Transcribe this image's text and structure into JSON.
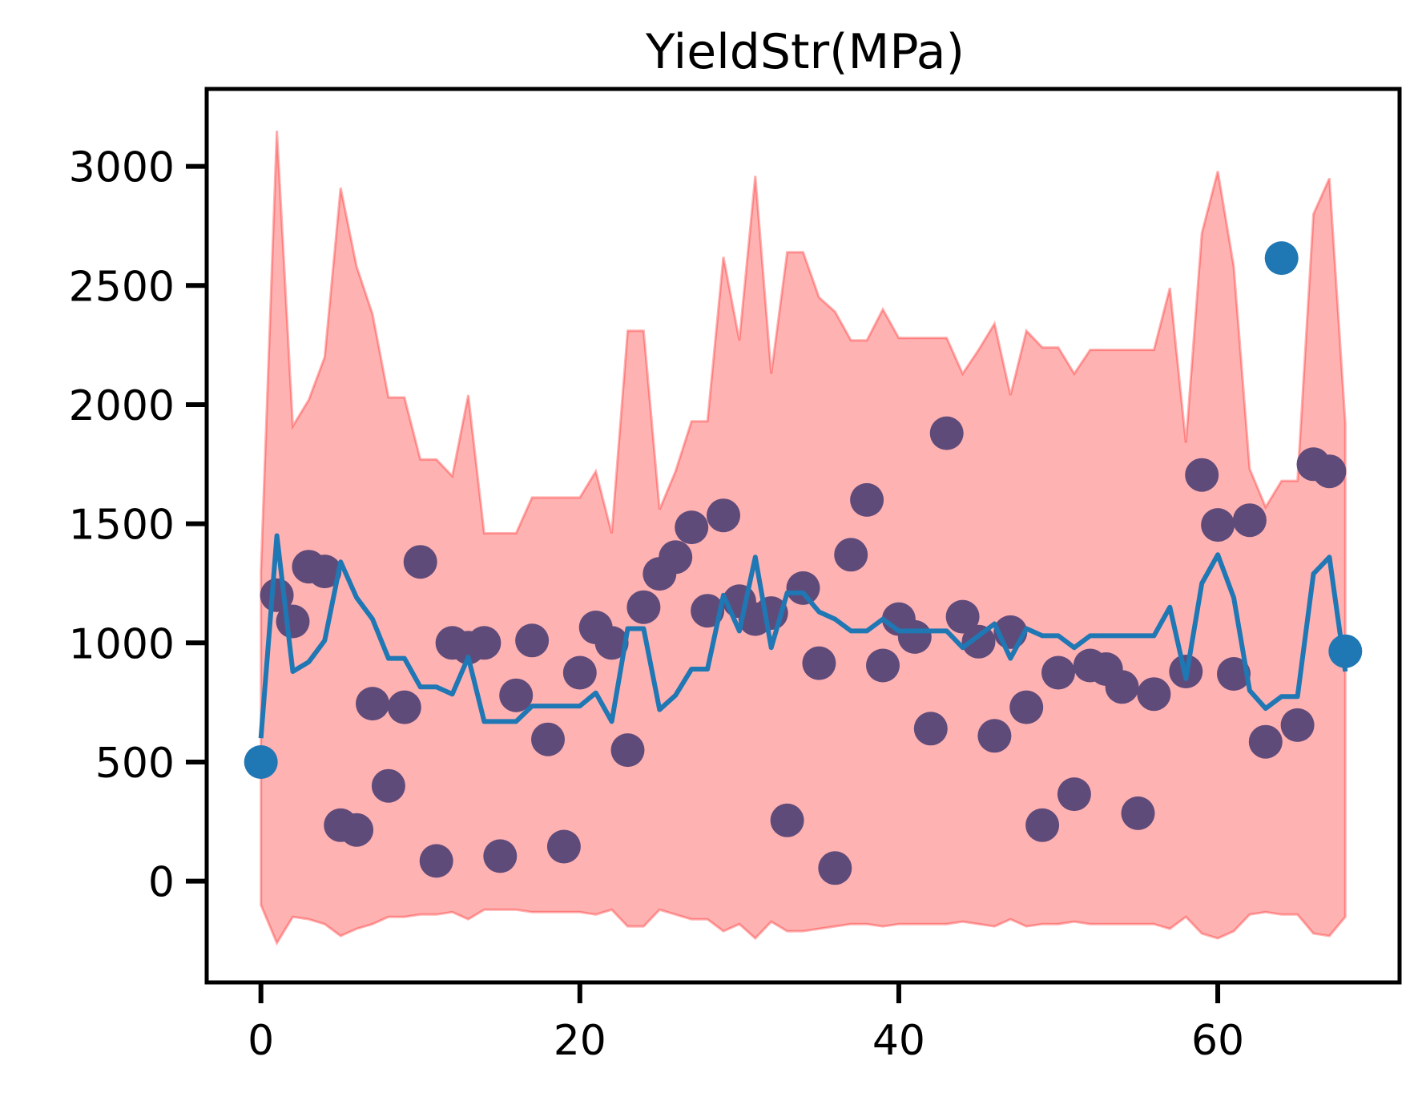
{
  "chart_data": {
    "type": "line",
    "title": "YieldStr(MPa)",
    "xlabel": "",
    "ylabel": "",
    "xlim": [
      -3.4,
      71.4
    ],
    "ylim": [
      -425,
      3325
    ],
    "xticks": [
      0,
      20,
      40,
      60
    ],
    "yticks": [
      0,
      500,
      1000,
      1500,
      2000,
      2500,
      3000
    ],
    "grid": false,
    "legend": "none",
    "colors": {
      "band": "#ff0000",
      "band_opacity": 0.3,
      "line": "#1f77b4",
      "points_inside": "#5f4b7a",
      "points_outside": "#1f77b4"
    },
    "band": {
      "x": [
        0,
        1,
        2,
        3,
        4,
        5,
        6,
        7,
        8,
        9,
        10,
        11,
        12,
        13,
        14,
        15,
        16,
        17,
        18,
        19,
        20,
        21,
        22,
        23,
        24,
        25,
        26,
        27,
        28,
        29,
        30,
        31,
        32,
        33,
        34,
        35,
        36,
        37,
        38,
        39,
        40,
        41,
        42,
        43,
        44,
        45,
        46,
        47,
        48,
        49,
        50,
        51,
        52,
        53,
        54,
        55,
        56,
        57,
        58,
        59,
        60,
        61,
        62,
        63,
        64,
        65,
        66,
        67,
        68
      ],
      "upper": [
        1300,
        3150,
        1910,
        2020,
        2200,
        2910,
        2580,
        2380,
        2030,
        2030,
        1770,
        1770,
        1700,
        2040,
        1460,
        1460,
        1460,
        1610,
        1610,
        1610,
        1610,
        1720,
        1460,
        2310,
        2310,
        1560,
        1720,
        1930,
        1930,
        2620,
        2270,
        2960,
        2130,
        2640,
        2640,
        2450,
        2390,
        2270,
        2270,
        2400,
        2280,
        2280,
        2280,
        2280,
        2130,
        2230,
        2340,
        2040,
        2310,
        2240,
        2240,
        2130,
        2230,
        2230,
        2230,
        2230,
        2230,
        2490,
        1840,
        2720,
        2980,
        2580,
        1730,
        1570,
        1680,
        1680,
        2800,
        2950,
        1920
      ],
      "lower": [
        -100,
        -260,
        -150,
        -160,
        -180,
        -230,
        -200,
        -180,
        -150,
        -150,
        -140,
        -140,
        -130,
        -160,
        -120,
        -120,
        -120,
        -130,
        -130,
        -130,
        -130,
        -140,
        -120,
        -190,
        -190,
        -120,
        -140,
        -160,
        -160,
        -210,
        -180,
        -240,
        -170,
        -210,
        -210,
        -200,
        -190,
        -180,
        -180,
        -190,
        -180,
        -180,
        -180,
        -180,
        -170,
        -180,
        -190,
        -160,
        -190,
        -180,
        -180,
        -170,
        -180,
        -180,
        -180,
        -180,
        -180,
        -200,
        -150,
        -220,
        -240,
        -210,
        -140,
        -130,
        -140,
        -140,
        -220,
        -230,
        -150
      ]
    },
    "series": [
      {
        "type": "line",
        "x": [
          0,
          1,
          2,
          3,
          4,
          5,
          6,
          7,
          8,
          9,
          10,
          11,
          12,
          13,
          14,
          15,
          16,
          17,
          18,
          19,
          20,
          21,
          22,
          23,
          24,
          25,
          26,
          27,
          28,
          29,
          30,
          31,
          32,
          33,
          34,
          35,
          36,
          37,
          38,
          39,
          40,
          41,
          42,
          43,
          44,
          45,
          46,
          47,
          48,
          49,
          50,
          51,
          52,
          53,
          54,
          55,
          56,
          57,
          58,
          59,
          60,
          61,
          62,
          63,
          64,
          65,
          66,
          67,
          68
        ],
        "y": [
          600,
          1450,
          880,
          920,
          1010,
          1340,
          1190,
          1100,
          935,
          935,
          815,
          815,
          785,
          940,
          670,
          670,
          670,
          735,
          735,
          735,
          735,
          790,
          670,
          1060,
          1060,
          720,
          780,
          890,
          890,
          1200,
          1050,
          1360,
          980,
          1210,
          1210,
          1130,
          1100,
          1050,
          1050,
          1100,
          1050,
          1050,
          1050,
          1050,
          980,
          1030,
          1080,
          935,
          1060,
          1030,
          1030,
          980,
          1030,
          1030,
          1030,
          1030,
          1030,
          1150,
          850,
          1250,
          1370,
          1190,
          800,
          725,
          775,
          775,
          1290,
          1360,
          880
        ]
      },
      {
        "type": "scatter",
        "x": [
          1,
          2,
          3,
          4,
          5,
          6,
          7,
          8,
          9,
          10,
          11,
          12,
          13,
          14,
          15,
          16,
          17,
          18,
          19,
          20,
          21,
          22,
          23,
          24,
          25,
          26,
          27,
          28,
          29,
          30,
          31,
          32,
          33,
          34,
          35,
          36,
          37,
          38,
          39,
          40,
          41,
          42,
          43,
          44,
          45,
          46,
          47,
          48,
          49,
          50,
          51,
          52,
          53,
          54,
          55,
          56,
          58,
          59,
          60,
          61,
          62,
          63,
          65,
          66,
          67
        ],
        "y": [
          1200,
          1090,
          1320,
          1300,
          235,
          215,
          745,
          400,
          730,
          1340,
          85,
          1000,
          980,
          1000,
          105,
          780,
          1010,
          595,
          145,
          875,
          1065,
          1000,
          550,
          1150,
          1290,
          1360,
          1485,
          1135,
          1535,
          1175,
          1100,
          1125,
          255,
          1230,
          915,
          55,
          1370,
          1600,
          905,
          1100,
          1025,
          640,
          1880,
          1110,
          1005,
          610,
          1045,
          730,
          235,
          875,
          365,
          905,
          890,
          815,
          285,
          785,
          880,
          1705,
          1495,
          870,
          1515,
          585,
          655,
          1750,
          1720
        ]
      },
      {
        "type": "scatter",
        "x": [
          0,
          64,
          68
        ],
        "y": [
          500,
          2615,
          965
        ]
      }
    ]
  }
}
